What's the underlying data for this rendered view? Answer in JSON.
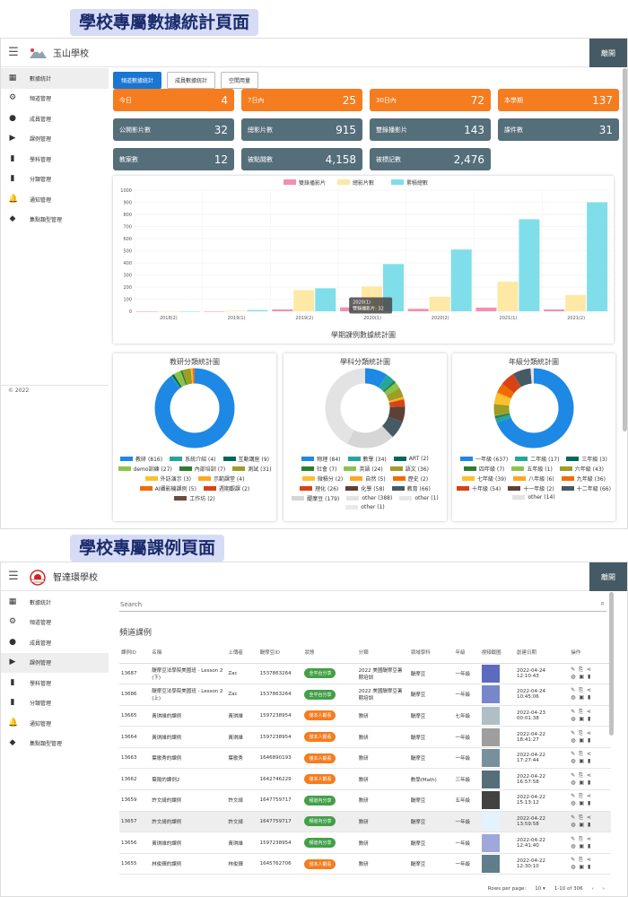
{
  "top_title": "學校專屬數據統計頁面",
  "bottom_title": "學校專屬課例頁面",
  "colors": {
    "orange": "#f57c1f",
    "slate": "#546e7a",
    "accent": "#1976d2",
    "green": "#43a047"
  },
  "dashboard": {
    "brand": "玉山學校",
    "signout": "離開",
    "copyright": "© 2022",
    "sidebar": [
      {
        "label": "數據統計",
        "icon": "dashboard-icon"
      },
      {
        "label": "頻道管理",
        "icon": "settings-icon"
      },
      {
        "label": "成員管理",
        "icon": "person-icon"
      },
      {
        "label": "課例管理",
        "icon": "video-icon"
      },
      {
        "label": "學科管理",
        "icon": "book-icon"
      },
      {
        "label": "分類管理",
        "icon": "book-icon"
      },
      {
        "label": "通知管理",
        "icon": "bell-icon"
      },
      {
        "label": "集點類型管理",
        "icon": "tag-icon"
      }
    ],
    "tabs": [
      "頻道數據統計",
      "成員數據統計",
      "空間用量"
    ],
    "cards": [
      {
        "label": "今日",
        "value": "4"
      },
      {
        "label": "7日內",
        "value": "25"
      },
      {
        "label": "30日內",
        "value": "72"
      },
      {
        "label": "本學期",
        "value": "137"
      },
      {
        "label": "公開影片數",
        "value": "32"
      },
      {
        "label": "總影片數",
        "value": "915"
      },
      {
        "label": "雙錄播影片",
        "value": "143"
      },
      {
        "label": "課件數",
        "value": "31"
      },
      {
        "label": "教案數",
        "value": "12"
      },
      {
        "label": "被點閱數",
        "value": "4,158"
      },
      {
        "label": "被標記數",
        "value": "2,476"
      }
    ],
    "bar_chart": {
      "type": "bar",
      "title": "學期課例數據統計圖",
      "categories": [
        "2018(2)",
        "2019(1)",
        "2019(2)",
        "2020(1)",
        "2020(2)",
        "2021(1)",
        "2021(2)"
      ],
      "ylim": [
        0,
        1000
      ],
      "yticks": [
        "0",
        "100",
        "200",
        "300",
        "400",
        "500",
        "600",
        "700",
        "800",
        "900",
        "1000"
      ],
      "series": [
        {
          "name": "雙錄播影片",
          "color": "#f48fb1",
          "values": [
            0,
            0,
            15,
            32,
            20,
            30,
            15
          ]
        },
        {
          "name": "總影片數",
          "color": "#fde8a6",
          "values": [
            0,
            5,
            175,
            205,
            120,
            245,
            135
          ]
        },
        {
          "name": "累積總數",
          "color": "#80deea",
          "values": [
            0,
            10,
            190,
            390,
            510,
            760,
            900
          ]
        }
      ],
      "tooltip_title": "2020(1)",
      "tooltip_text": "雙錄播影片: 32"
    },
    "donuts": [
      {
        "title": "教研分類統計圖",
        "values": [
          816,
          4,
          9,
          27,
          7,
          31,
          3,
          4,
          5,
          2,
          2
        ],
        "legend": [
          {
            "label": "教研 (816)",
            "color": "#1e88e5"
          },
          {
            "label": "系統介紹 (4)",
            "color": "#26a69a"
          },
          {
            "label": "互動講座 (9)",
            "color": "#00695c"
          },
          {
            "label": "demo訓練 (27)",
            "color": "#8bc34a"
          },
          {
            "label": "內部培訓 (7)",
            "color": "#2e7d32"
          },
          {
            "label": "測試 (31)",
            "color": "#9e9d24"
          },
          {
            "label": "外訪演示 (3)",
            "color": "#fbc02d"
          },
          {
            "label": "示範課堂 (4)",
            "color": "#f9a825"
          },
          {
            "label": "AI攝影機課例 (5)",
            "color": "#ef6c00"
          },
          {
            "label": "週期觀課 (2)",
            "color": "#d84315"
          },
          {
            "label": "工作坊 (2)",
            "color": "#6d4c41"
          }
        ]
      },
      {
        "title": "學科分類統計圖",
        "values": [
          84,
          34,
          2,
          7,
          24,
          36,
          2,
          5,
          2,
          26,
          58,
          66,
          179,
          388,
          1,
          1
        ],
        "legend": [
          {
            "label": "物理 (84)",
            "color": "#1e88e5"
          },
          {
            "label": "數學 (34)",
            "color": "#26a69a"
          },
          {
            "label": "ART (2)",
            "color": "#00695c"
          },
          {
            "label": "社會 (7)",
            "color": "#2e7d32"
          },
          {
            "label": "英語 (24)",
            "color": "#8bc34a"
          },
          {
            "label": "語文 (36)",
            "color": "#9e9d24"
          },
          {
            "label": "微積分 (2)",
            "color": "#fbc02d"
          },
          {
            "label": "自然 (5)",
            "color": "#f9a825"
          },
          {
            "label": "歷史 (2)",
            "color": "#ef6c00"
          },
          {
            "label": "理化 (26)",
            "color": "#d84315"
          },
          {
            "label": "化學 (58)",
            "color": "#5d4037"
          },
          {
            "label": "教育 (66)",
            "color": "#455a64"
          },
          {
            "label": "醍摩豆 (179)",
            "color": "#d6d6d6"
          },
          {
            "label": "other (388)",
            "color": "#e3e3e3"
          },
          {
            "label": "other (1)",
            "color": "#e6e6e6"
          },
          {
            "label": "other (1)",
            "color": "#e9e9e9"
          }
        ]
      },
      {
        "title": "年級分類統計圖",
        "values": [
          637,
          17,
          3,
          7,
          1,
          43,
          39,
          6,
          36,
          54,
          2,
          66,
          14
        ],
        "legend": [
          {
            "label": "一年級 (637)",
            "color": "#1e88e5"
          },
          {
            "label": "二年級 (17)",
            "color": "#26a69a"
          },
          {
            "label": "三年級 (3)",
            "color": "#00695c"
          },
          {
            "label": "四年級 (7)",
            "color": "#2e7d32"
          },
          {
            "label": "五年級 (1)",
            "color": "#8bc34a"
          },
          {
            "label": "六年級 (43)",
            "color": "#9e9d24"
          },
          {
            "label": "七年級 (39)",
            "color": "#fbc02d"
          },
          {
            "label": "八年級 (6)",
            "color": "#f9a825"
          },
          {
            "label": "九年級 (36)",
            "color": "#ef6c00"
          },
          {
            "label": "十年級 (54)",
            "color": "#d84315"
          },
          {
            "label": "十一年級 (2)",
            "color": "#5d4037"
          },
          {
            "label": "十二年級 (66)",
            "color": "#455a64"
          },
          {
            "label": "other (14)",
            "color": "#e3e3e3"
          }
        ]
      }
    ]
  },
  "lessons": {
    "brand": "智達環學校",
    "signout": "離開",
    "sidebar": [
      {
        "label": "數據統計",
        "icon": "dashboard-icon"
      },
      {
        "label": "頻道管理",
        "icon": "settings-icon"
      },
      {
        "label": "成員管理",
        "icon": "person-icon"
      },
      {
        "label": "課例管理",
        "icon": "video-icon"
      },
      {
        "label": "學科管理",
        "icon": "book-icon"
      },
      {
        "label": "分類管理",
        "icon": "book-icon"
      },
      {
        "label": "通知管理",
        "icon": "bell-icon"
      },
      {
        "label": "集點類型管理",
        "icon": "tag-icon"
      }
    ],
    "search_placeholder": "Search",
    "section_title": "頻道課例",
    "columns": [
      "課例ID",
      "名稱",
      "上傳者",
      "醍摩豆ID",
      "狀態",
      "分類",
      "領域學科",
      "年級",
      "視頻截圖",
      "創建日期",
      "操作"
    ],
    "rows": [
      {
        "id": "13687",
        "name": "醍摩豆法學院美國班 - Lesson 2 (下)",
        "uploader": "Zac",
        "tbid": "1537863264",
        "status": "全平台分享",
        "category": "2022 美國醍摩豆暑期培訓",
        "subject": "醍摩豆",
        "grade": "一年級",
        "date": "2022-04-24",
        "time": "12:10:43"
      },
      {
        "id": "13686",
        "name": "醍摩豆法學院美國班 - Lesson 2 (上)",
        "uploader": "Zac",
        "tbid": "1537863264",
        "status": "全平台分享",
        "category": "2022 美國醍摩豆暑期培訓",
        "subject": "醍摩豆",
        "grade": "一年級",
        "date": "2022-04-24",
        "time": "10:45:06"
      },
      {
        "id": "13665",
        "name": "黃琪維的課例",
        "uploader": "黃琪維",
        "tbid": "1597238954",
        "status": "僅本人觀看",
        "category": "教研",
        "subject": "醍摩豆",
        "grade": "七年級",
        "date": "2022-04-23",
        "time": "00:01:38"
      },
      {
        "id": "13664",
        "name": "黃琪維的課例",
        "uploader": "黃琪維",
        "tbid": "1597238954",
        "status": "僅本人觀看",
        "category": "教研",
        "subject": "醍摩豆",
        "grade": "一年級",
        "date": "2022-04-22",
        "time": "18:41:27"
      },
      {
        "id": "13663",
        "name": "葉歌秀的課例",
        "uploader": "葉歌秀",
        "tbid": "1646890193",
        "status": "僅本人觀看",
        "category": "教研",
        "subject": "醍摩豆",
        "grade": "一年級",
        "date": "2022-04-22",
        "time": "17:27:44"
      },
      {
        "id": "13662",
        "name": "葉陽的課例2",
        "uploader": "",
        "tbid": "1642746229",
        "status": "僅本人觀看",
        "category": "教研",
        "subject": "數學(Math)",
        "grade": "三年級",
        "date": "2022-04-22",
        "time": "16:57:58"
      },
      {
        "id": "13659",
        "name": "許文綺的課例",
        "uploader": "許文綺",
        "tbid": "1647759717",
        "status": "頻道內分享",
        "category": "教研",
        "subject": "醍摩豆",
        "grade": "五年級",
        "date": "2022-04-22",
        "time": "15:13:12"
      },
      {
        "id": "13657",
        "name": "許文綺的課例",
        "uploader": "許文綺",
        "tbid": "1647759717",
        "status": "頻道內分享",
        "category": "教研",
        "subject": "醍摩豆",
        "grade": "一年級",
        "date": "2022-04-22",
        "time": "13:59:58"
      },
      {
        "id": "13656",
        "name": "黃琪維的課例",
        "uploader": "黃琪維",
        "tbid": "1597238954",
        "status": "頻道內分享",
        "category": "教研",
        "subject": "醍摩豆",
        "grade": "一年級",
        "date": "2022-04-22",
        "time": "12:41:40"
      },
      {
        "id": "13655",
        "name": "林俊輝的課例",
        "uploader": "林俊輝",
        "tbid": "1645762706",
        "status": "僅本人觀看",
        "category": "教研",
        "subject": "醍摩豆",
        "grade": "一年級",
        "date": "2022-04-22",
        "time": "12:30:10"
      }
    ],
    "status_colors": {
      "全平台分享": "#43a047",
      "頻道內分享": "#43a047",
      "僅本人觀看": "#f57c1f"
    },
    "pagination": {
      "rows_label": "Rows per page:",
      "rows_value": "10",
      "range": "1-10 of 306"
    }
  }
}
